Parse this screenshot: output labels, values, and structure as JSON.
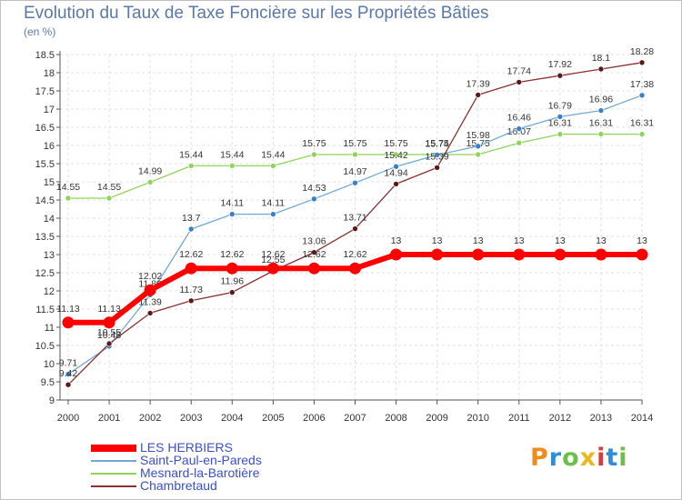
{
  "title": "Evolution du Taux de Taxe Foncière sur les Propriétés Bâties",
  "unit_label": "(en %)",
  "logo": {
    "text": "Proxiti",
    "colors": [
      "#f08c1e",
      "#2e8fd8",
      "#6cc04a",
      "#e8b81c",
      "#d83c3c",
      "#2e8fd8",
      "#6cc04a"
    ]
  },
  "chart_data": {
    "type": "line",
    "title": "Evolution du Taux de Taxe Foncière sur les Propriétés Bâties",
    "ylabel": "(en %)",
    "xlabel": "",
    "ylim": [
      9,
      18.5
    ],
    "yticks": [
      "9",
      "9.5",
      "10",
      "10.5",
      "11",
      "11.5",
      "12",
      "12.5",
      "13",
      "13.5",
      "14",
      "14.5",
      "15",
      "15.5",
      "16",
      "16.5",
      "17",
      "17.5",
      "18",
      "18.5"
    ],
    "categories": [
      "2000",
      "2001",
      "2002",
      "2003",
      "2004",
      "2005",
      "2006",
      "2007",
      "2008",
      "2009",
      "2010",
      "2011",
      "2012",
      "2013",
      "2014"
    ],
    "series": [
      {
        "name": "Mesnard-la-Barotière",
        "color": "#8fd45a",
        "dot": "#8fd45a",
        "values": [
          14.55,
          14.55,
          14.99,
          15.44,
          15.44,
          15.44,
          15.75,
          15.75,
          15.75,
          15.75,
          15.75,
          16.07,
          16.31,
          16.31,
          16.31
        ],
        "labels": [
          "14.55",
          "14.55",
          "14.99",
          "15.44",
          "15.44",
          "15.44",
          "15.75",
          "15.75",
          "15.75",
          "15.75",
          "15.75",
          "16.07",
          "16.31",
          "16.31",
          "16.31"
        ]
      },
      {
        "name": "Saint-Paul-en-Pareds",
        "color": "#6fa8d8",
        "dot": "#3b7fc4",
        "values": [
          9.71,
          10.48,
          11.89,
          13.7,
          14.11,
          14.11,
          14.53,
          14.97,
          15.42,
          15.74,
          15.98,
          16.46,
          16.79,
          16.96,
          17.38
        ],
        "labels": [
          "9.71",
          "10.48",
          "11.89",
          "13.7",
          "14.11",
          "14.11",
          "14.53",
          "14.97",
          "15.42",
          "15.74",
          "15.98",
          "16.46",
          "16.79",
          "16.96",
          "17.38"
        ]
      },
      {
        "name": "Chambretaud",
        "color": "#8a3030",
        "dot": "#5a1818",
        "values": [
          9.42,
          10.55,
          11.39,
          11.73,
          11.96,
          12.55,
          13.06,
          13.71,
          14.94,
          15.39,
          17.39,
          17.74,
          17.92,
          18.1,
          18.28
        ],
        "labels": [
          "9.42",
          "10.55",
          "11.39",
          "11.73",
          "11.96",
          "12.55",
          "13.06",
          "13.71",
          "14.94",
          "15.39",
          "17.39",
          "17.74",
          "17.92",
          "18.1",
          "18.28"
        ]
      },
      {
        "name": "LES HERBIERS",
        "color": "#ff0000",
        "dot": "#ff0000",
        "values": [
          11.13,
          11.13,
          12.02,
          12.62,
          12.62,
          12.62,
          12.62,
          12.62,
          13,
          13,
          13,
          13,
          13,
          13,
          13
        ],
        "labels": [
          "11.13",
          "11.13",
          "12.02",
          "12.62",
          "12.62",
          "12.62",
          "12.62",
          "12.62",
          "13",
          "13",
          "13",
          "13",
          "13",
          "13",
          "13"
        ]
      }
    ],
    "legend": [
      "LES HERBIERS",
      "Saint-Paul-en-Pareds",
      "Mesnard-la-Barotière",
      "Chambretaud"
    ]
  }
}
